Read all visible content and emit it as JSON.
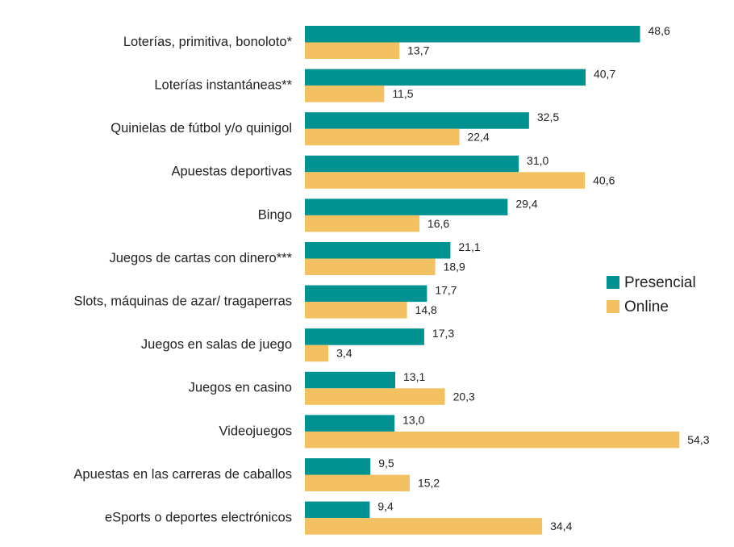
{
  "chart_data": {
    "type": "bar",
    "orientation": "horizontal",
    "categories": [
      "Loterías, primitiva, bonoloto*",
      "Loterías instantáneas**",
      "Quinielas de fútbol y/o quinigol",
      "Apuestas deportivas",
      "Bingo",
      "Juegos de cartas con dinero***",
      "Slots, máquinas de azar/ tragaperras",
      "Juegos en salas de juego",
      "Juegos en casino",
      "Videojuegos",
      "Apuestas en las carreras de caballos",
      "eSports o deportes electrónicos"
    ],
    "series": [
      {
        "name": "Presencial",
        "color": "#009291",
        "values": [
          48.6,
          40.7,
          32.5,
          31.0,
          29.4,
          21.1,
          17.7,
          17.3,
          13.1,
          13.0,
          9.5,
          9.4
        ],
        "value_labels": [
          "48,6",
          "40,7",
          "32,5",
          "31,0",
          "29,4",
          "21,1",
          "17,7",
          "17,3",
          "13,1",
          "13,0",
          "9,5",
          "9,4"
        ]
      },
      {
        "name": "Online",
        "color": "#f3c062",
        "values": [
          13.7,
          11.5,
          22.4,
          40.6,
          16.6,
          18.9,
          14.8,
          3.4,
          20.3,
          54.3,
          15.2,
          34.4
        ],
        "value_labels": [
          "13,7",
          "11,5",
          "22,4",
          "40,6",
          "16,6",
          "18,9",
          "14,8",
          "3,4",
          "20,3",
          "54,3",
          "15,2",
          "34,4"
        ]
      }
    ]
  }
}
